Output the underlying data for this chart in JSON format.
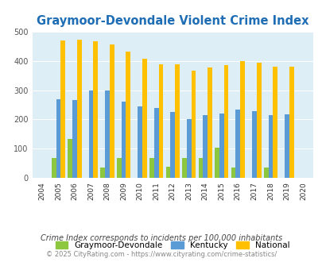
{
  "title": "Graymoor-Devondale Violent Crime Index",
  "years": [
    2004,
    2005,
    2006,
    2007,
    2008,
    2009,
    2010,
    2011,
    2012,
    2013,
    2014,
    2015,
    2016,
    2017,
    2018,
    2019,
    2020
  ],
  "graymoor": [
    0,
    70,
    135,
    0,
    37,
    68,
    0,
    70,
    40,
    70,
    70,
    103,
    37,
    0,
    37,
    0,
    0
  ],
  "kentucky": [
    0,
    268,
    265,
    300,
    298,
    260,
    245,
    240,
    225,
    202,
    215,
    221,
    235,
    228,
    215,
    218,
    0
  ],
  "national": [
    0,
    470,
    473,
    467,
    455,
    432,
    406,
    388,
    388,
    367,
    378,
    384,
    399,
    394,
    381,
    380,
    0
  ],
  "color_graymoor": "#8dc63f",
  "color_kentucky": "#5b9bd5",
  "color_national": "#ffc000",
  "color_background": "#ddeef6",
  "color_title": "#1f6eb5",
  "color_footnote": "#444444",
  "color_footnote2": "#888888",
  "ylabel_max": 500,
  "yticks": [
    0,
    100,
    200,
    300,
    400,
    500
  ],
  "legend_label_graymoor": "Graymoor-Devondale",
  "legend_label_kentucky": "Kentucky",
  "legend_label_national": "National",
  "footnote1": "Crime Index corresponds to incidents per 100,000 inhabitants",
  "footnote2": "© 2025 CityRating.com - https://www.cityrating.com/crime-statistics/"
}
